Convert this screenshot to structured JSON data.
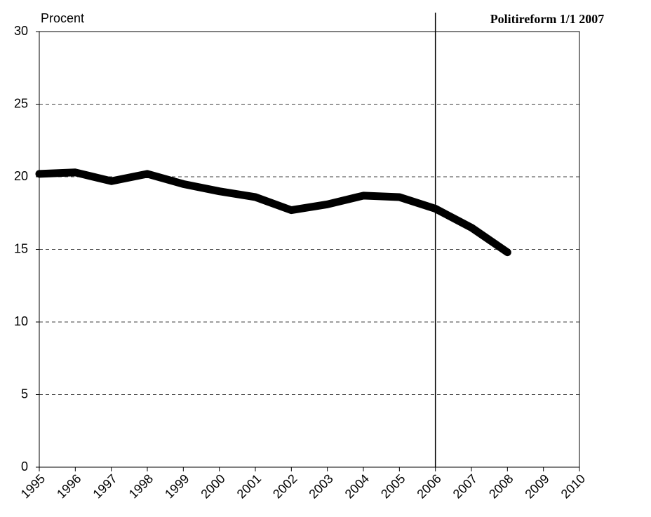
{
  "chart_data": {
    "type": "line",
    "y_label": "Procent",
    "x": [
      1995,
      1996,
      1997,
      1998,
      1999,
      2000,
      2001,
      2002,
      2003,
      2004,
      2005,
      2006,
      2007,
      2008
    ],
    "series": [
      {
        "color": "#000000",
        "values": [
          20.2,
          20.3,
          19.7,
          20.2,
          19.5,
          19.0,
          18.6,
          17.7,
          18.1,
          18.7,
          18.6,
          17.8,
          16.5,
          14.8
        ]
      }
    ],
    "xlim": [
      1995,
      2010
    ],
    "xticks": [
      1995,
      1996,
      1997,
      1998,
      1999,
      2000,
      2001,
      2002,
      2003,
      2004,
      2005,
      2006,
      2007,
      2008,
      2009,
      2010
    ],
    "ylim": [
      0,
      30
    ],
    "yticks": [
      0,
      5,
      10,
      15,
      20,
      25,
      30
    ],
    "grid": true,
    "reference_line": {
      "x": 2006,
      "label": "Politireform 1/1 2007"
    }
  }
}
